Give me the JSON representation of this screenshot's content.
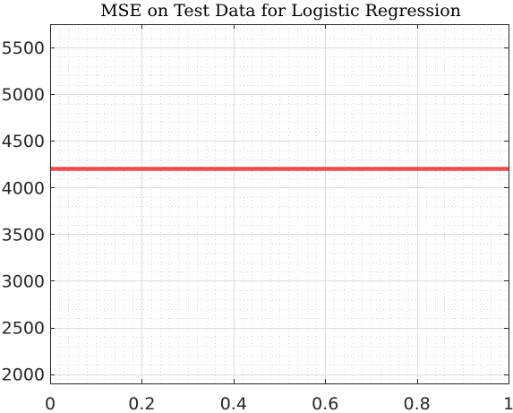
{
  "chart_data": {
    "type": "line",
    "title": "MSE on Test Data for Logistic Regression",
    "xlabel": "",
    "ylabel": "",
    "xlim": [
      0,
      1
    ],
    "ylim": [
      1900,
      5750
    ],
    "xticks": [
      0,
      0.2,
      0.4,
      0.6,
      0.8,
      1
    ],
    "xtick_labels": [
      "0",
      "0.2",
      "0.4",
      "0.6",
      "0.8",
      "1"
    ],
    "yticks": [
      2000,
      2500,
      3000,
      3500,
      4000,
      4500,
      5000,
      5500
    ],
    "ytick_labels": [
      "2000",
      "2500",
      "3000",
      "3500",
      "4000",
      "4500",
      "5000",
      "5500"
    ],
    "grid": true,
    "minor_grid": true,
    "series": [
      {
        "x": [
          0,
          1
        ],
        "y": [
          4200,
          4200
        ],
        "color": "#f04a4a"
      }
    ]
  }
}
